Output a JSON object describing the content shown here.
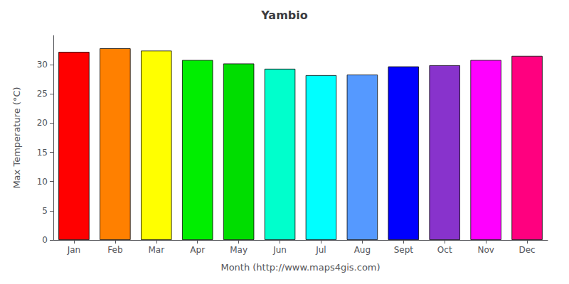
{
  "chart_data": {
    "type": "bar",
    "title": "Yambio",
    "xlabel": "Month (http://www.maps4gis.com)",
    "ylabel": "Max Temperature (°C)",
    "categories": [
      "Jan",
      "Feb",
      "Mar",
      "Apr",
      "May",
      "Jun",
      "Jul",
      "Aug",
      "Sept",
      "Oct",
      "Nov",
      "Dec"
    ],
    "values": [
      32.2,
      32.8,
      32.4,
      30.8,
      30.2,
      29.3,
      28.2,
      28.3,
      29.7,
      29.9,
      30.8,
      31.5
    ],
    "colors": [
      "#ff0000",
      "#ff8000",
      "#ffff00",
      "#00ee00",
      "#00dd00",
      "#00ffcc",
      "#00ffff",
      "#5599ff",
      "#0000ff",
      "#8833cc",
      "#ff00ff",
      "#ff007f"
    ],
    "ylim": [
      0,
      35
    ],
    "yticks": [
      0,
      5,
      10,
      15,
      20,
      25,
      30
    ],
    "grid": false
  }
}
